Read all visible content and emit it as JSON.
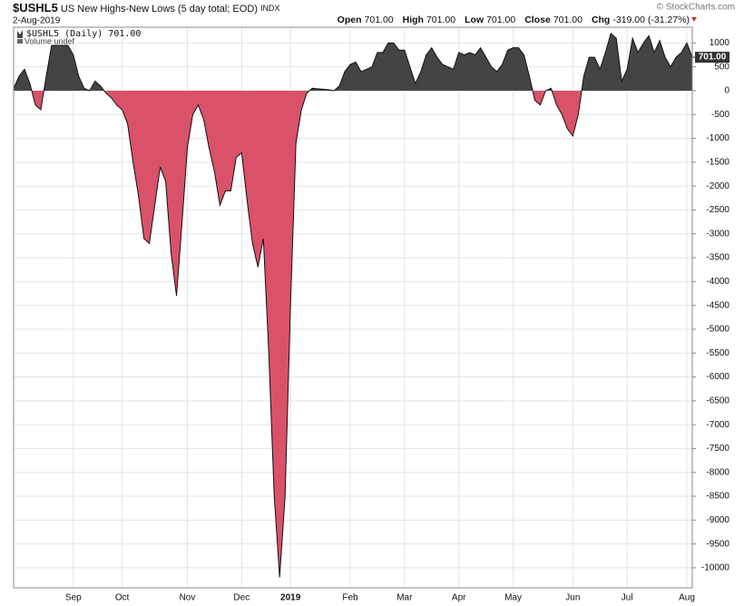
{
  "chart_data": {
    "type": "area",
    "title_symbol": "$USHL5",
    "title": "US New Highs-New Lows (5 day total; EOD)",
    "exchange": "INDX",
    "date": "2-Aug-2019",
    "watermark": "© StockCharts.com",
    "quote": [
      {
        "label": "Open",
        "value": "701.00"
      },
      {
        "label": "High",
        "value": "701.00"
      },
      {
        "label": "Low",
        "value": "701.00"
      },
      {
        "label": "Close",
        "value": "701.00"
      },
      {
        "label": "Chg",
        "value": "-319.00 (-31.27%)"
      }
    ],
    "legend": [
      "$USHL5 (Daily) 701.00",
      "Volume undef"
    ],
    "last_value_label": "701.00",
    "positive_color": "#444444",
    "negative_color": "#d9526a",
    "categories": [
      null,
      null,
      null,
      null,
      null,
      null,
      null,
      null,
      null,
      null,
      null,
      "Sep",
      null,
      null,
      null,
      null,
      null,
      null,
      null,
      null,
      "Oct",
      null,
      null,
      null,
      null,
      null,
      null,
      null,
      null,
      null,
      null,
      null,
      "Nov",
      null,
      null,
      null,
      null,
      null,
      null,
      null,
      null,
      null,
      "Dec",
      null,
      null,
      null,
      null,
      null,
      null,
      null,
      null,
      "2019",
      null,
      null,
      null,
      null,
      null,
      null,
      null,
      null,
      null,
      null,
      "Feb",
      null,
      null,
      null,
      null,
      null,
      null,
      null,
      null,
      null,
      "Mar",
      null,
      null,
      null,
      null,
      null,
      null,
      null,
      null,
      null,
      "Apr",
      null,
      null,
      null,
      null,
      null,
      null,
      null,
      null,
      null,
      "May",
      null,
      null,
      null,
      null,
      null,
      null,
      null,
      null,
      null,
      null,
      "Jun",
      null,
      null,
      null,
      null,
      null,
      null,
      null,
      null,
      null,
      "Jul",
      null,
      null,
      null,
      null,
      null,
      null,
      null,
      null,
      null,
      null,
      "Aug",
      null
    ],
    "values": [
      50,
      300,
      450,
      150,
      -300,
      -400,
      300,
      950,
      950,
      950,
      950,
      750,
      300,
      50,
      0,
      200,
      100,
      -50,
      -150,
      -300,
      -400,
      -700,
      -1500,
      -2200,
      -3100,
      -3200,
      -2400,
      -1600,
      -1900,
      -3400,
      -4300,
      -2800,
      -1200,
      -500,
      -300,
      -600,
      -1200,
      -1700,
      -2400,
      -2100,
      -2100,
      -1400,
      -1300,
      -2300,
      -3200,
      -3700,
      -3100,
      -5500,
      -8500,
      -10200,
      -8500,
      -4500,
      -1100,
      -400,
      -50,
      50,
      40,
      30,
      20,
      0,
      100,
      400,
      550,
      600,
      400,
      450,
      500,
      800,
      800,
      1000,
      1000,
      850,
      850,
      500,
      150,
      400,
      750,
      900,
      700,
      550,
      500,
      450,
      800,
      750,
      800,
      750,
      900,
      700,
      500,
      400,
      550,
      850,
      900,
      900,
      750,
      300,
      -200,
      -300,
      0,
      50,
      -300,
      -500,
      -800,
      -950,
      -500,
      300,
      700,
      700,
      450,
      800,
      1200,
      1100,
      200,
      450,
      1100,
      800,
      1000,
      1150,
      800,
      1050,
      700,
      500,
      700,
      800,
      1000,
      701
    ],
    "ylim": [
      -10420,
      1330
    ],
    "yticks": [
      1000,
      500,
      0,
      -500,
      -1000,
      -1500,
      -2000,
      -2500,
      -3000,
      -3500,
      -4000,
      -4500,
      -5000,
      -5500,
      -6000,
      -6500,
      -7000,
      -7500,
      -8000,
      -8500,
      -9000,
      -9500,
      -10000
    ],
    "grid": true
  }
}
